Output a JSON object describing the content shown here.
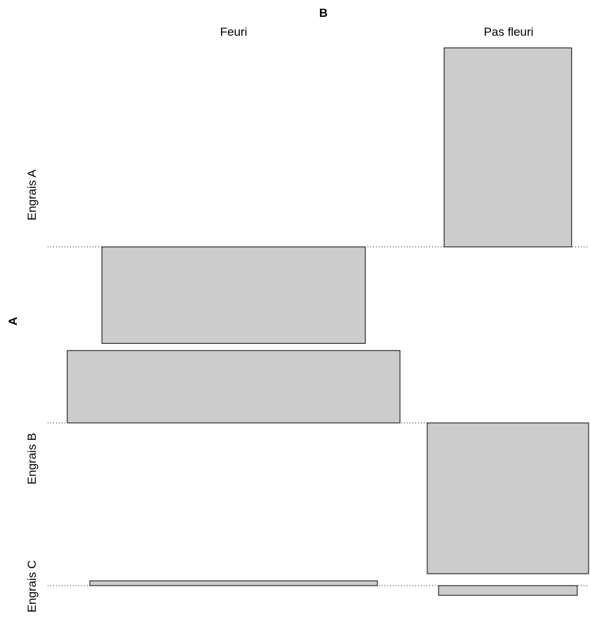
{
  "chart_data": {
    "type": "mosaic",
    "title_columns": "B",
    "title_rows": "A",
    "columns": [
      "Feuri",
      "Pas fleuri"
    ],
    "rows": [
      "Engrais A",
      "Engrais B",
      "Engrais C"
    ],
    "note": "Extended mosaic / spine-style plot; cell height reflects Pas fleuri and Feuri counts deviating from baseline per row.",
    "cells": [
      {
        "row": "Engrais A",
        "col": "Feuri",
        "direction": "down",
        "rel_width": 0.76,
        "rel_height": 0.16
      },
      {
        "row": "Engrais A",
        "col": "Pas fleuri",
        "direction": "up",
        "rel_width": 0.79,
        "rel_height": 0.33
      },
      {
        "row": "Engrais B",
        "col": "Feuri",
        "direction": "up",
        "rel_width": 0.96,
        "rel_height": 0.12
      },
      {
        "row": "Engrais B",
        "col": "Pas fleuri",
        "direction": "down",
        "rel_width": 1.0,
        "rel_height": 0.25
      },
      {
        "row": "Engrais C",
        "col": "Feuri",
        "direction": "up",
        "rel_width": 0.83,
        "rel_height": 0.008
      },
      {
        "row": "Engrais C",
        "col": "Pas fleuri",
        "direction": "down",
        "rel_width": 0.86,
        "rel_height": 0.016
      }
    ]
  }
}
